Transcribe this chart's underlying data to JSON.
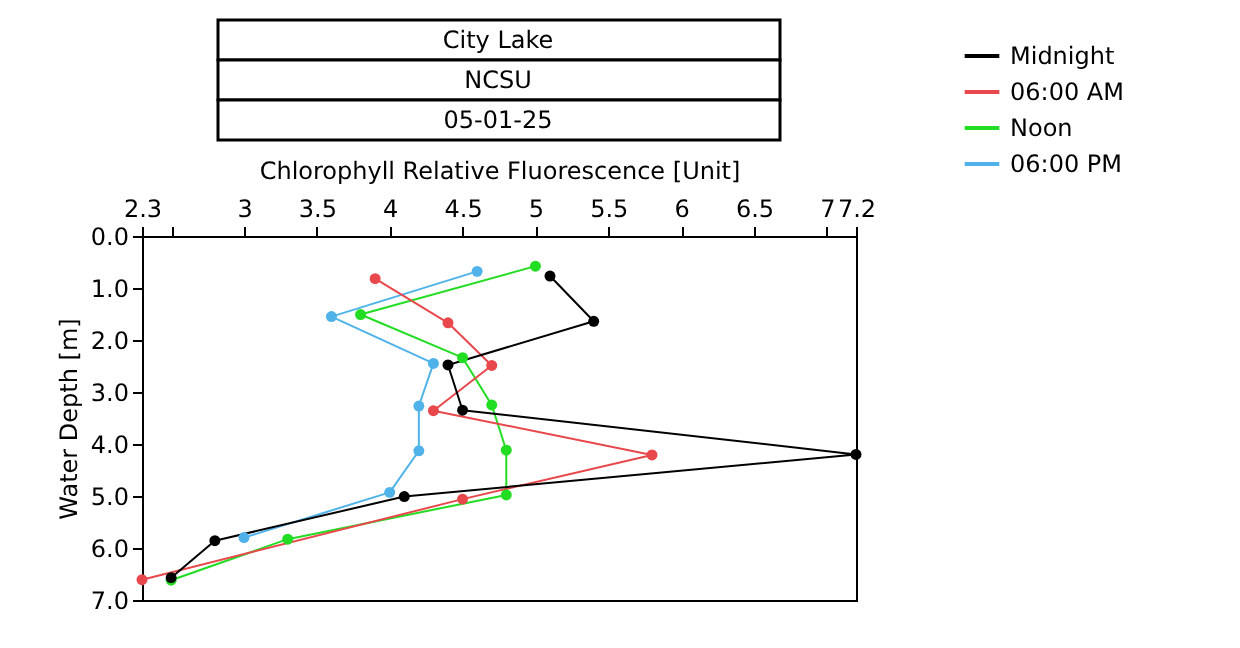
{
  "chart_data": {
    "type": "line",
    "title": "City Lake",
    "subtitle": "NCSU",
    "annotations": [
      "05-01-25"
    ],
    "xlabel": "Chlorophyll Relative Fluorescence [Unit]",
    "ylabel": "Water Depth [m]",
    "xlim": [
      2.3,
      7.2
    ],
    "xticks": [
      2.3,
      {
        "value": 2.5,
        "label": null
      },
      3,
      3.5,
      4,
      4.5,
      5,
      5.5,
      6,
      6.5,
      7,
      7.2
    ],
    "ylim": [
      7,
      0
    ],
    "yticks": [
      {
        "value": 0,
        "label": "0.0"
      },
      {
        "value": 1,
        "label": "1.0"
      },
      {
        "value": 2,
        "label": "2.0"
      },
      {
        "value": 3,
        "label": "3.0"
      },
      {
        "value": 4,
        "label": "4.0"
      },
      {
        "value": 5,
        "label": "5.0"
      },
      {
        "value": 6,
        "label": "6.0"
      },
      {
        "value": 7,
        "label": "7.0"
      }
    ],
    "grid": false,
    "legend": "top right",
    "marker": "circle",
    "line_style": "solid",
    "series": [
      {
        "name": "Midnight",
        "color": "#000000",
        "x": [
          5.1,
          5.4,
          4.4,
          4.5,
          7.2,
          4.1,
          2.8,
          2.5
        ],
        "values": [
          0.77,
          1.64,
          2.48,
          3.35,
          4.2,
          5.01,
          5.86,
          6.57
        ]
      },
      {
        "name": "06:00 AM",
        "color": "#e8474b",
        "x": [
          3.9,
          4.4,
          4.7,
          4.3,
          5.8,
          4.5,
          2.3
        ],
        "values": [
          0.82,
          1.67,
          2.49,
          3.36,
          4.21,
          5.06,
          6.61
        ]
      },
      {
        "name": "Noon",
        "color": "#22dd22",
        "x": [
          5.0,
          3.8,
          4.5,
          4.7,
          4.8,
          4.8,
          3.3,
          2.5
        ],
        "values": [
          0.58,
          1.51,
          2.34,
          3.25,
          4.12,
          4.98,
          5.83,
          6.62
        ]
      },
      {
        "name": "06:00 PM",
        "color": "#4fb3ea",
        "x": [
          4.6,
          3.6,
          4.3,
          4.2,
          4.2,
          4.0,
          3.0
        ],
        "values": [
          0.68,
          1.55,
          2.45,
          3.27,
          4.13,
          4.93,
          5.8
        ]
      }
    ]
  }
}
